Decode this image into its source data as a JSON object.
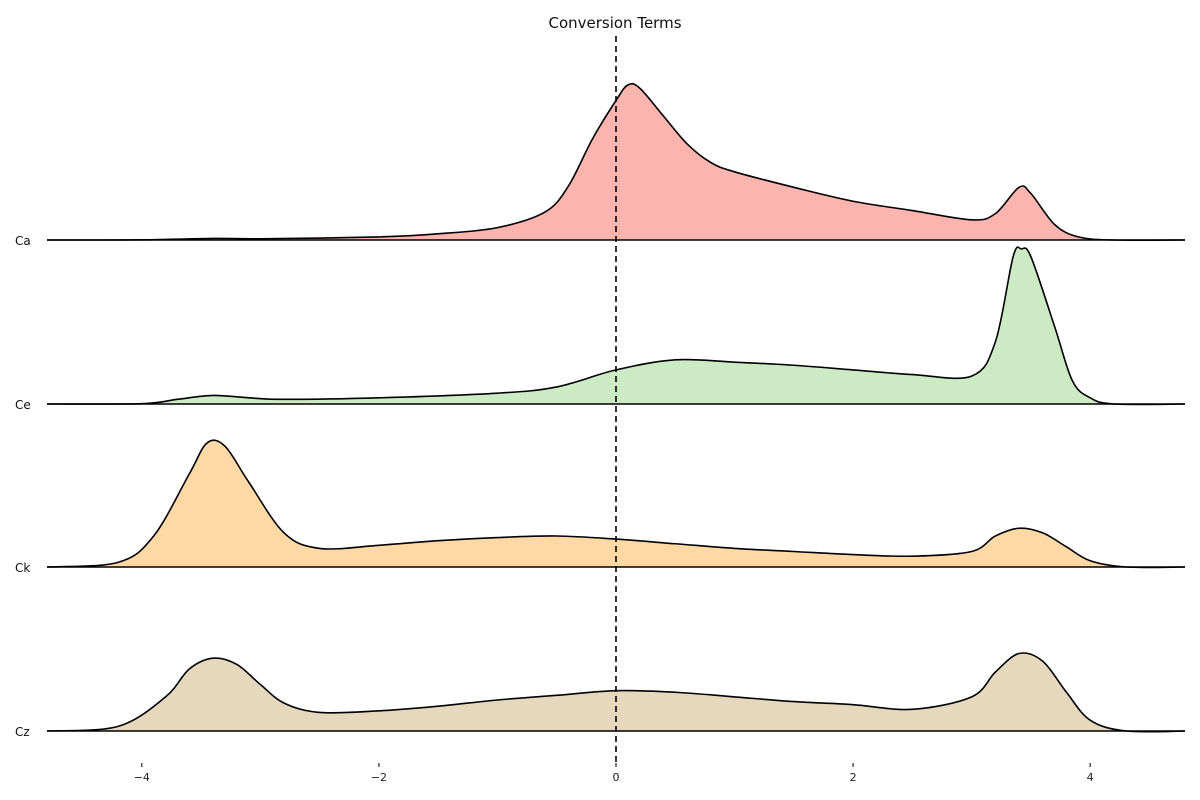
{
  "chart_data": {
    "type": "area",
    "title": "Conversion Terms",
    "xlabel": "",
    "ylabel": "",
    "xlim": [
      -4.8,
      4.8
    ],
    "xticks": [
      -4,
      -2,
      0,
      2,
      4
    ],
    "xtick_labels": [
      "−4",
      "−2",
      "0",
      "2",
      "4"
    ],
    "reference_line": {
      "x": 0,
      "style": "dashed"
    },
    "grid": false,
    "legend": "none",
    "series": [
      {
        "name": "Ca",
        "color": "#fbb4ae",
        "points": [
          [
            -4.8,
            0
          ],
          [
            -4,
            0.001
          ],
          [
            -3.4,
            0.01
          ],
          [
            -3,
            0.008
          ],
          [
            -2,
            0.02
          ],
          [
            -1.5,
            0.04
          ],
          [
            -1,
            0.08
          ],
          [
            -0.6,
            0.18
          ],
          [
            -0.4,
            0.35
          ],
          [
            -0.2,
            0.65
          ],
          [
            0,
            0.9
          ],
          [
            0.1,
            1.0
          ],
          [
            0.2,
            0.98
          ],
          [
            0.4,
            0.8
          ],
          [
            0.6,
            0.62
          ],
          [
            0.8,
            0.5
          ],
          [
            1,
            0.44
          ],
          [
            1.5,
            0.34
          ],
          [
            2,
            0.25
          ],
          [
            2.5,
            0.19
          ],
          [
            3,
            0.13
          ],
          [
            3.2,
            0.17
          ],
          [
            3.4,
            0.34
          ],
          [
            3.5,
            0.3
          ],
          [
            3.7,
            0.1
          ],
          [
            3.9,
            0.02
          ],
          [
            4.2,
            0
          ],
          [
            4.8,
            0
          ]
        ]
      },
      {
        "name": "Ce",
        "color": "#ccebc5",
        "points": [
          [
            -4.8,
            0
          ],
          [
            -4,
            0.002
          ],
          [
            -3.7,
            0.03
          ],
          [
            -3.4,
            0.055
          ],
          [
            -3.1,
            0.04
          ],
          [
            -2.8,
            0.03
          ],
          [
            -2,
            0.04
          ],
          [
            -1,
            0.07
          ],
          [
            -0.5,
            0.11
          ],
          [
            0,
            0.22
          ],
          [
            0.5,
            0.285
          ],
          [
            1,
            0.27
          ],
          [
            1.5,
            0.25
          ],
          [
            2,
            0.22
          ],
          [
            2.5,
            0.19
          ],
          [
            3,
            0.18
          ],
          [
            3.2,
            0.4
          ],
          [
            3.35,
            0.95
          ],
          [
            3.42,
            1.0
          ],
          [
            3.5,
            0.95
          ],
          [
            3.7,
            0.5
          ],
          [
            3.85,
            0.15
          ],
          [
            4,
            0.04
          ],
          [
            4.2,
            0
          ],
          [
            4.8,
            0
          ]
        ]
      },
      {
        "name": "Ck",
        "color": "#fed9a6",
        "points": [
          [
            -4.8,
            0
          ],
          [
            -4.2,
            0.03
          ],
          [
            -3.9,
            0.2
          ],
          [
            -3.6,
            0.6
          ],
          [
            -3.45,
            0.8
          ],
          [
            -3.3,
            0.78
          ],
          [
            -3.1,
            0.55
          ],
          [
            -2.8,
            0.22
          ],
          [
            -2.5,
            0.12
          ],
          [
            -2,
            0.14
          ],
          [
            -1.5,
            0.17
          ],
          [
            -1,
            0.19
          ],
          [
            -0.5,
            0.2
          ],
          [
            0,
            0.18
          ],
          [
            0.5,
            0.15
          ],
          [
            1,
            0.12
          ],
          [
            1.5,
            0.1
          ],
          [
            2,
            0.08
          ],
          [
            2.5,
            0.07
          ],
          [
            3,
            0.1
          ],
          [
            3.2,
            0.2
          ],
          [
            3.4,
            0.25
          ],
          [
            3.6,
            0.22
          ],
          [
            3.8,
            0.13
          ],
          [
            4,
            0.04
          ],
          [
            4.3,
            0
          ],
          [
            4.8,
            0
          ]
        ]
      },
      {
        "name": "Cz",
        "color": "#e5d8bd",
        "points": [
          [
            -4.8,
            0
          ],
          [
            -4.2,
            0.03
          ],
          [
            -3.8,
            0.22
          ],
          [
            -3.6,
            0.4
          ],
          [
            -3.4,
            0.47
          ],
          [
            -3.2,
            0.43
          ],
          [
            -3,
            0.3
          ],
          [
            -2.8,
            0.18
          ],
          [
            -2.5,
            0.12
          ],
          [
            -2,
            0.13
          ],
          [
            -1.5,
            0.16
          ],
          [
            -1,
            0.2
          ],
          [
            -0.5,
            0.23
          ],
          [
            0,
            0.26
          ],
          [
            0.5,
            0.25
          ],
          [
            1,
            0.22
          ],
          [
            1.5,
            0.19
          ],
          [
            2,
            0.17
          ],
          [
            2.5,
            0.14
          ],
          [
            3,
            0.22
          ],
          [
            3.2,
            0.38
          ],
          [
            3.4,
            0.5
          ],
          [
            3.6,
            0.45
          ],
          [
            3.8,
            0.25
          ],
          [
            4,
            0.07
          ],
          [
            4.3,
            0
          ],
          [
            4.8,
            0
          ]
        ]
      }
    ]
  }
}
